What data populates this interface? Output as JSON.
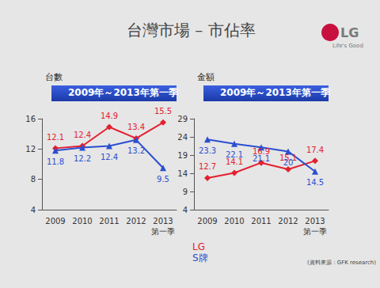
{
  "slide": {
    "title": "台灣市場 – 市佔率",
    "logo": "LG",
    "logo_tagline": "Life's Good",
    "source": "(資料來源：GFK research)"
  },
  "chart_data": [
    {
      "type": "line",
      "title": "2009年～2013年第一季",
      "ylabel": "台數",
      "categories": [
        "2009",
        "2010",
        "2011",
        "2012",
        "2013\n第一季"
      ],
      "series": [
        {
          "name": "LG",
          "color": "#e3202e",
          "marker": "diamond",
          "values": [
            12.1,
            12.4,
            14.9,
            13.4,
            15.5
          ]
        },
        {
          "name": "S牌",
          "color": "#2a4fd0",
          "marker": "triangle",
          "values": [
            11.8,
            12.2,
            12.4,
            13.2,
            9.5
          ]
        }
      ],
      "ylim": [
        4,
        16
      ],
      "yticks": [
        4,
        8,
        12,
        16
      ],
      "grid": false,
      "data_labels": true
    },
    {
      "type": "line",
      "title": "2009年～2013年第一季",
      "ylabel": "金額",
      "categories": [
        "2009",
        "2010",
        "2011",
        "2012",
        "2013\n第一季"
      ],
      "series": [
        {
          "name": "LG",
          "color": "#e3202e",
          "marker": "diamond",
          "values": [
            12.7,
            14.1,
            16.9,
            15.1,
            17.4
          ]
        },
        {
          "name": "S牌",
          "color": "#2a4fd0",
          "marker": "triangle",
          "values": [
            23.3,
            22.1,
            21.1,
            20,
            14.5
          ]
        }
      ],
      "ylim": [
        4,
        29
      ],
      "yticks": [
        4,
        9,
        14,
        19,
        24,
        29
      ],
      "grid": false,
      "data_labels": true
    }
  ]
}
